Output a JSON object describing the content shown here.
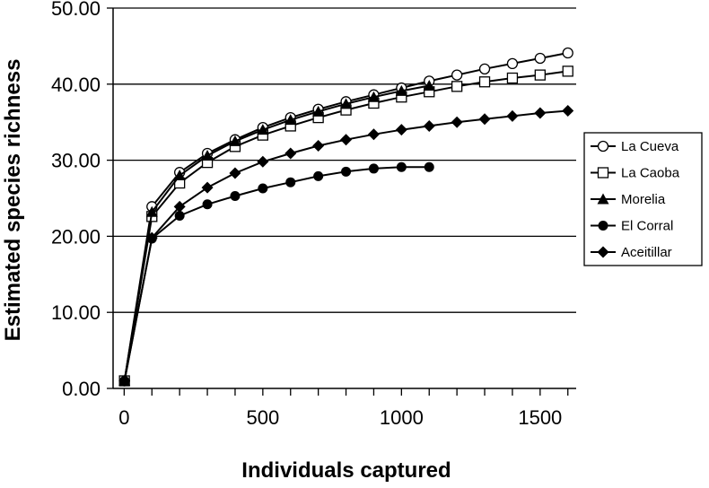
{
  "chart_data": {
    "type": "line",
    "title": "",
    "xlabel": "Individuals captured",
    "ylabel": "Estimated species richness",
    "xlim": [
      -40,
      1630
    ],
    "ylim": [
      0,
      50
    ],
    "x_ticks": [
      0,
      500,
      1000,
      1500
    ],
    "x_tick_labels": [
      "0",
      "500",
      "1000",
      "1500"
    ],
    "y_ticks": [
      0,
      10,
      20,
      30,
      40,
      50
    ],
    "y_tick_labels": [
      "0.00",
      "10.00",
      "20.00",
      "30.00",
      "40.00",
      "50.00"
    ],
    "grid": "horizontal",
    "legend_position": "right",
    "series": [
      {
        "name": "La Cueva",
        "marker": "open-circle",
        "x": [
          1,
          100,
          200,
          300,
          400,
          500,
          600,
          700,
          800,
          900,
          1000,
          1100,
          1200,
          1300,
          1400,
          1500,
          1600
        ],
        "y": [
          1.0,
          23.9,
          28.4,
          30.9,
          32.7,
          34.3,
          35.6,
          36.7,
          37.7,
          38.6,
          39.5,
          40.4,
          41.2,
          42.0,
          42.7,
          43.4,
          44.1
        ]
      },
      {
        "name": "La Caoba",
        "marker": "open-square",
        "x": [
          1,
          100,
          200,
          300,
          400,
          500,
          600,
          700,
          800,
          900,
          1000,
          1100,
          1200,
          1300,
          1400,
          1500,
          1600
        ],
        "y": [
          1.0,
          22.6,
          27.0,
          29.7,
          31.8,
          33.3,
          34.5,
          35.6,
          36.6,
          37.5,
          38.3,
          39.0,
          39.7,
          40.3,
          40.8,
          41.2,
          41.7
        ]
      },
      {
        "name": "Morelia",
        "marker": "filled-triangle",
        "x": [
          1,
          100,
          200,
          300,
          400,
          500,
          600,
          700,
          800,
          900,
          1000,
          1100
        ],
        "y": [
          1.0,
          23.2,
          28.0,
          30.6,
          32.5,
          34.0,
          35.3,
          36.4,
          37.4,
          38.3,
          39.1,
          39.8
        ]
      },
      {
        "name": "El Corral",
        "marker": "filled-circle",
        "x": [
          1,
          100,
          200,
          300,
          400,
          500,
          600,
          700,
          800,
          900,
          1000,
          1100
        ],
        "y": [
          1.0,
          19.7,
          22.7,
          24.2,
          25.3,
          26.3,
          27.1,
          27.9,
          28.5,
          28.9,
          29.1,
          29.1
        ]
      },
      {
        "name": "Aceitillar",
        "marker": "filled-diamond",
        "x": [
          1,
          100,
          200,
          300,
          400,
          500,
          600,
          700,
          800,
          900,
          1000,
          1100,
          1200,
          1300,
          1400,
          1500,
          1600
        ],
        "y": [
          1.0,
          19.8,
          23.9,
          26.4,
          28.3,
          29.8,
          30.9,
          31.9,
          32.7,
          33.4,
          34.0,
          34.5,
          35.0,
          35.4,
          35.8,
          36.2,
          36.5
        ]
      }
    ]
  }
}
